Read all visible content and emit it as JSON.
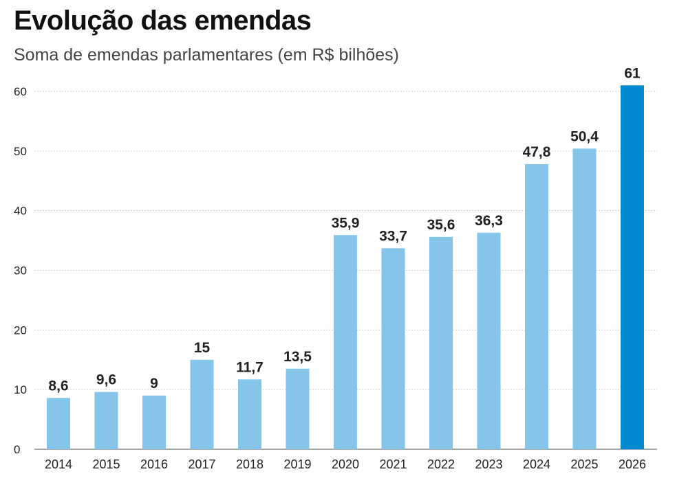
{
  "chart_data": {
    "type": "bar",
    "title": "Evolução das emendas",
    "subtitle": "Soma de emendas parlamentares (em R$ bilhões)",
    "categories": [
      "2014",
      "2015",
      "2016",
      "2017",
      "2018",
      "2019",
      "2020",
      "2021",
      "2022",
      "2023",
      "2024",
      "2025",
      "2026"
    ],
    "values": [
      8.6,
      9.6,
      9,
      15,
      11.7,
      13.5,
      35.9,
      33.7,
      35.6,
      36.3,
      47.8,
      50.4,
      61
    ],
    "data_labels": [
      "8,6",
      "9,6",
      "9",
      "15",
      "11,7",
      "13,5",
      "35,9",
      "33,7",
      "35,6",
      "36,3",
      "47,8",
      "50,4",
      "61"
    ],
    "yticks": [
      "0",
      "10",
      "20",
      "30",
      "40",
      "50",
      "60"
    ],
    "ylim": [
      0,
      60
    ],
    "grid": true,
    "colors": {
      "bar": "#85c5ea",
      "highlight": "#0088d1",
      "highlight_text": "#1a7fc1"
    },
    "highlight_index": 12
  }
}
